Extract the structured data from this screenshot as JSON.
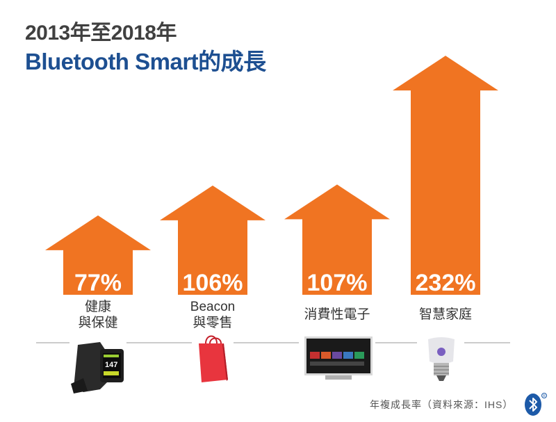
{
  "title_line1": "2013年至2018年",
  "title_line2": "Bluetooth Smart的成長",
  "source": "年複成長率（資料來源：IHS）",
  "colors": {
    "arrow": "#f07422",
    "title_blue": "#1d4f91",
    "title_gray": "#404040",
    "divider": "#999999"
  },
  "chart_data": {
    "type": "bar",
    "title": "2013年至2018年 Bluetooth Smart的成長",
    "categories": [
      {
        "line1": "健康",
        "line2": "與保健",
        "icon": "smartwatch-icon"
      },
      {
        "line1": "Beacon",
        "line2": "與零售",
        "icon": "shopping-bag-icon"
      },
      {
        "line1": "消費性電子",
        "line2": "",
        "icon": "television-icon"
      },
      {
        "line1": "智慧家庭",
        "line2": "",
        "icon": "smart-bulb-icon"
      }
    ],
    "values": [
      77,
      106,
      107,
      232
    ],
    "value_labels": [
      "77%",
      "106%",
      "107%",
      "232%"
    ],
    "unit": "%",
    "ylabel": "",
    "xlabel": ""
  }
}
